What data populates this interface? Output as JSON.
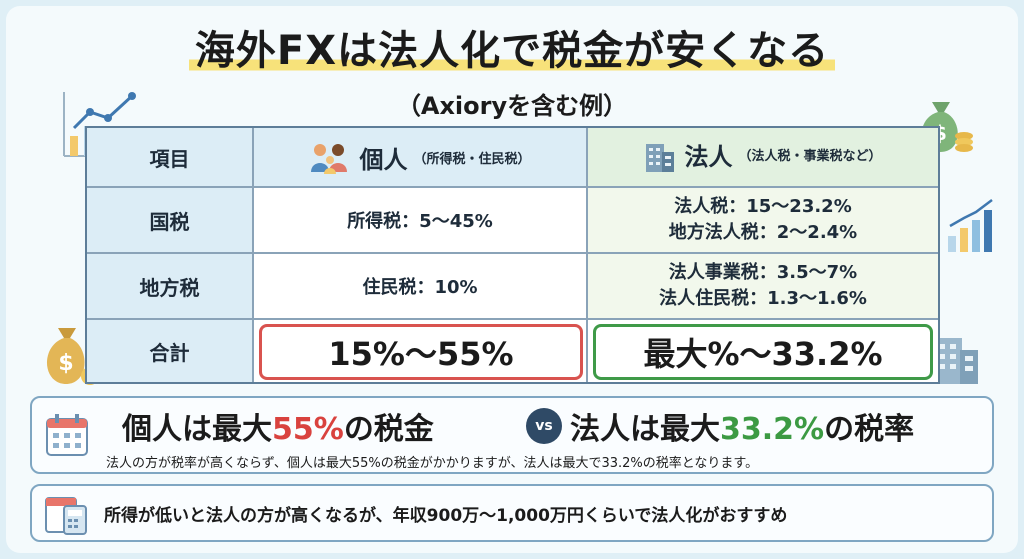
{
  "title": "海外FXは法人化で税金が安くなる",
  "subtitle": "（Axioryを含む例）",
  "table": {
    "header": {
      "item": "項目",
      "personal_label": "個人",
      "personal_note": "（所得税・住民税）",
      "corporate_label": "法人",
      "corporate_note": "（法人税・事業税など）"
    },
    "rows": [
      {
        "label": "国税",
        "personal": "所得税：5〜45%",
        "corporate": [
          "法人税：15〜23.2%",
          "地方法人税：2〜2.4%"
        ]
      },
      {
        "label": "地方税",
        "personal": "住民税：10%",
        "corporate": [
          "法人事業税：3.5〜7%",
          "法人住民税：1.3〜1.6%"
        ]
      },
      {
        "label": "合計",
        "personal": "15%〜55%",
        "corporate": "最大%〜33.2%"
      }
    ]
  },
  "comparison": {
    "left_prefix": "個人は最大",
    "left_value": "55%",
    "left_suffix": "の税金",
    "vs": "vs",
    "right_prefix": "法人は最大",
    "right_value": "33.2%",
    "right_suffix": "の税率",
    "note": "法人の方が税率が高くならず、個人は最大55%の税金がかかりますが、法人は最大で33.2%の税率となります。"
  },
  "advice": "所得が低いと法人の方が高くなるが、年収900万〜1,000万円くらいで法人化がおすすめ",
  "colors": {
    "red": "#d9423e",
    "green": "#3c9a43",
    "navy": "#2f4a66"
  },
  "icons": [
    "line-chart-icon",
    "money-bag-icon",
    "family-icon",
    "office-building-icon",
    "calendar-icon",
    "calculator-icon",
    "bar-chart-icon"
  ]
}
